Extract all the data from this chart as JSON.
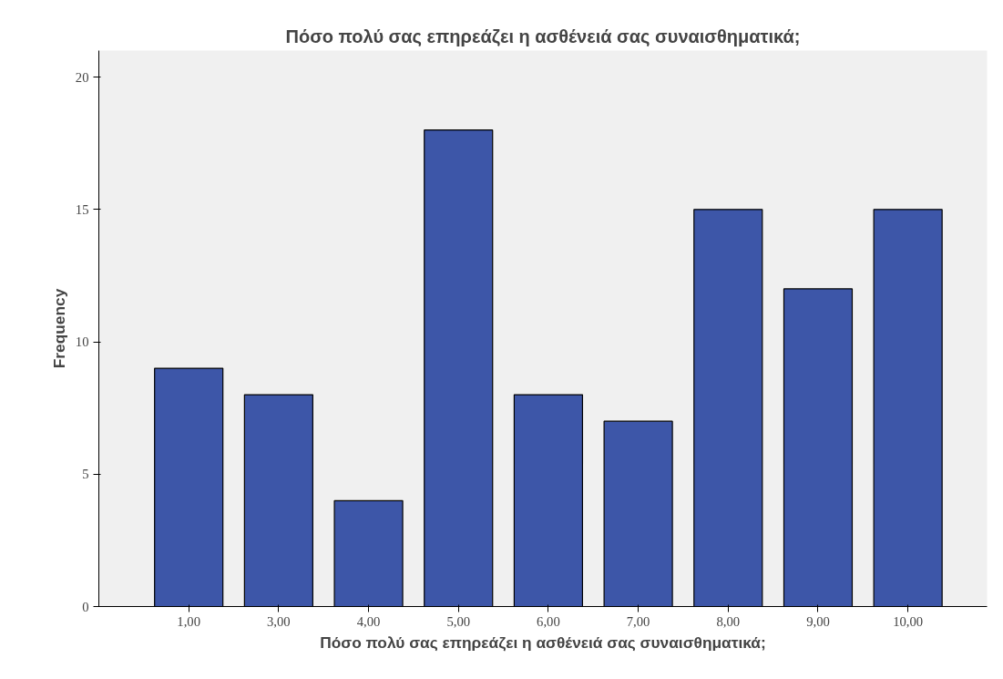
{
  "chart_data": {
    "type": "bar",
    "title": "Πόσο πολύ σας επηρεάζει η ασθένειά σας συναισθηματικά;",
    "xlabel": "Πόσο πολύ σας επηρεάζει η ασθένειά σας συναισθηματικά;",
    "ylabel": "Frequency",
    "categories": [
      "1,00",
      "3,00",
      "4,00",
      "5,00",
      "6,00",
      "7,00",
      "8,00",
      "9,00",
      "10,00"
    ],
    "values": [
      9,
      8,
      4,
      18,
      8,
      7,
      15,
      12,
      15
    ],
    "color": "#3d56a8",
    "ylim": [
      0,
      21
    ],
    "yticks": [
      0,
      5,
      10,
      15,
      20
    ]
  }
}
